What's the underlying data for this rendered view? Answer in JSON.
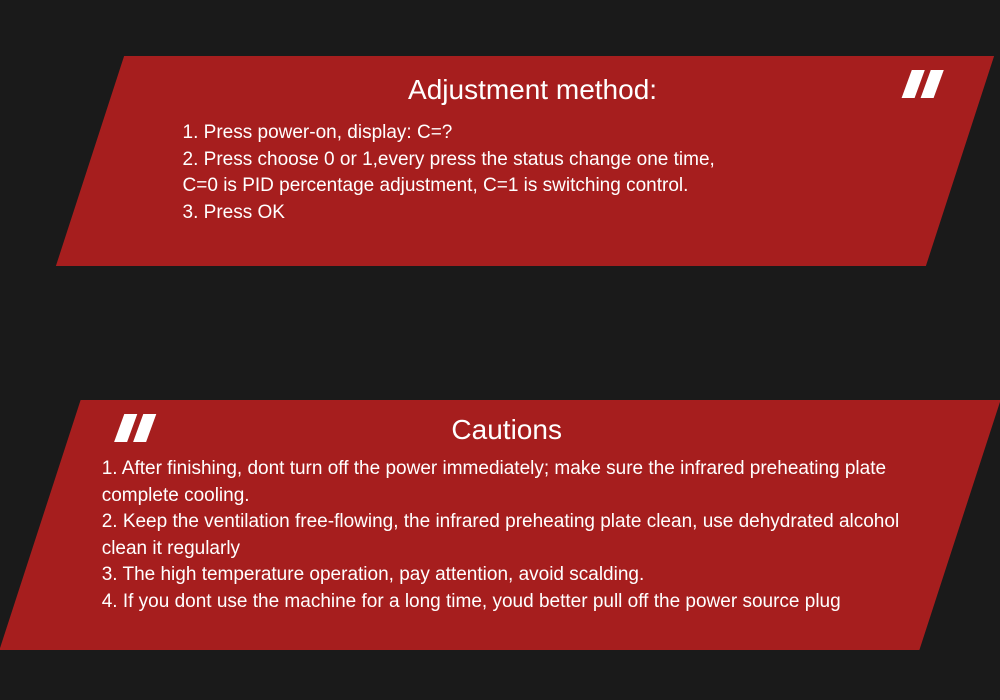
{
  "background_color": "#1a1a1a",
  "panel_color": "#a61e1e",
  "text_color": "#ffffff",
  "title_fontsize": 28,
  "body_fontsize": 19,
  "skew_deg": -18,
  "panels": {
    "adjustment": {
      "title": "Adjustment method:",
      "lines": [
        "1. Press power-on, display: C=?",
        "2. Press choose 0 or 1,every press the status change one time,",
        "C=0 is PID percentage adjustment, C=1 is switching control.",
        "3. Press OK"
      ],
      "quote_position": "top-right"
    },
    "cautions": {
      "title": "Cautions",
      "lines": [
        "1. After finishing, dont turn off the power immediately; make sure the infrared preheating plate complete cooling.",
        "2. Keep the ventilation free-flowing, the infrared preheating plate clean, use dehydrated alcohol clean it regularly",
        "3. The high temperature operation, pay attention, avoid scalding.",
        "4. If you dont use the machine for a long time, youd better pull off the power source plug"
      ],
      "quote_position": "top-left"
    }
  }
}
